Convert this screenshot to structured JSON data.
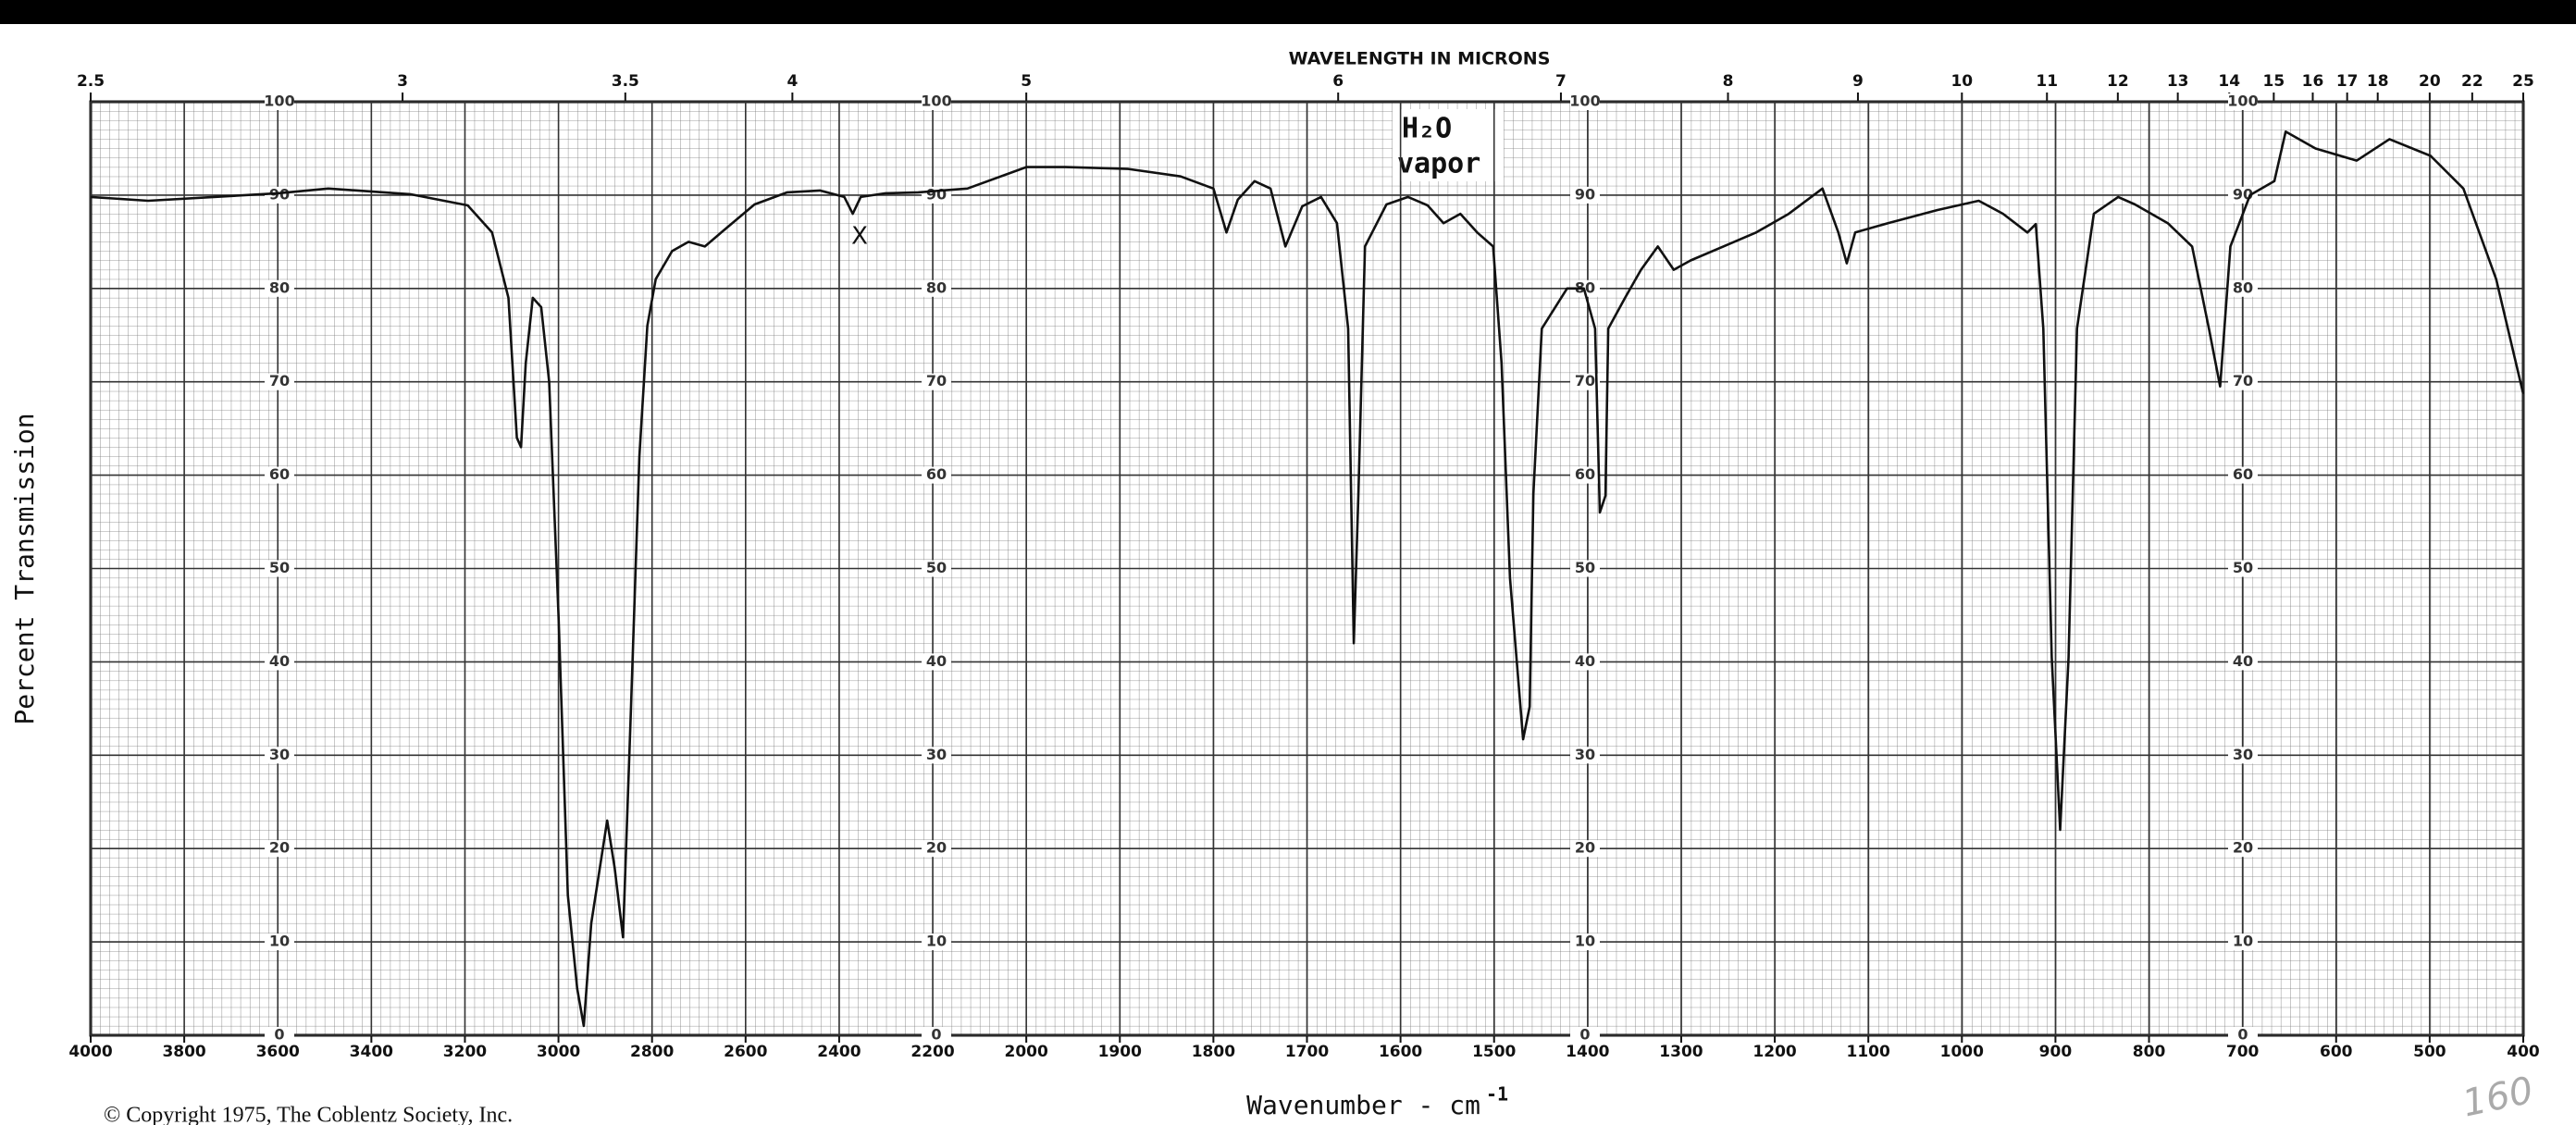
{
  "chart_data": {
    "type": "line",
    "title": "WAVELENGTH IN MICRONS",
    "x_label": "Wavenumber - cm",
    "x_label_sup": "-1",
    "y_label": "Percent Transmission",
    "copyright": "© Copyright 1975, The Coblentz Society, Inc.",
    "annotations": [
      "H₂O",
      "vapor",
      "X",
      "160"
    ],
    "x": [
      4000,
      3877,
      3737,
      3600,
      3492,
      3317,
      3194,
      3142,
      3107,
      3089,
      3080,
      3070,
      3055,
      3037,
      3020,
      3000,
      2980,
      2960,
      2946,
      2930,
      2896,
      2880,
      2862,
      2845,
      2827,
      2810,
      2792,
      2757,
      2722,
      2687,
      2652,
      2581,
      2511,
      2441,
      2389,
      2371,
      2354,
      2301,
      2231,
      2126,
      2000,
      1958,
      1891,
      1835,
      1800,
      1786,
      1774,
      1756,
      1739,
      1723,
      1705,
      1685,
      1668,
      1656,
      1650,
      1645,
      1638,
      1615,
      1592,
      1571,
      1554,
      1536,
      1518,
      1501,
      1492,
      1483,
      1469,
      1462,
      1458,
      1449,
      1422,
      1404,
      1392,
      1387,
      1381,
      1378,
      1360,
      1343,
      1325,
      1308,
      1290,
      1255,
      1220,
      1185,
      1149,
      1132,
      1123,
      1114,
      1079,
      1026,
      982,
      956,
      930,
      921,
      913,
      904,
      895,
      886,
      877,
      859,
      833,
      815,
      780,
      754,
      736,
      724,
      713,
      692,
      666,
      654,
      622,
      578,
      543,
      499,
      464,
      429,
      400
    ],
    "series": [
      {
        "name": "Percent Transmission",
        "color": "#111111",
        "values": [
          89.8,
          89.4,
          89.8,
          90.2,
          90.7,
          90.1,
          88.9,
          86,
          79,
          64,
          63,
          72,
          79,
          78,
          70,
          45,
          15,
          5,
          1,
          12,
          23,
          18,
          10.5,
          35,
          62,
          76,
          81,
          84,
          85,
          84.5,
          86,
          89,
          90.3,
          90.5,
          89.8,
          88,
          89.8,
          90.2,
          90.3,
          90.7,
          93,
          93,
          92.8,
          92,
          90.7,
          86,
          89.5,
          91.5,
          90.7,
          84.5,
          88.8,
          89.8,
          87,
          75.7,
          42,
          58,
          84.5,
          89,
          89.8,
          88.9,
          87,
          88,
          86,
          84.5,
          72,
          49,
          31.7,
          35.2,
          58,
          75.7,
          80,
          80,
          75.7,
          56,
          57.8,
          75.7,
          79,
          82,
          84.5,
          82,
          83,
          84.5,
          86,
          88,
          90.7,
          86,
          82.7,
          86,
          87,
          88.4,
          89.4,
          88,
          86,
          86.9,
          75.7,
          40.5,
          22,
          40.5,
          75.7,
          88,
          89.8,
          89,
          87,
          84.5,
          75.7,
          69.5,
          84.5,
          90,
          91.5,
          96.8,
          95,
          93.7,
          96,
          94.2,
          90.7,
          81,
          68.7
        ]
      }
    ],
    "xlim": [
      4000,
      400
    ],
    "xticks": [
      4000,
      3800,
      3600,
      3400,
      3200,
      3000,
      2800,
      2600,
      2400,
      2200,
      2000,
      1900,
      1800,
      1700,
      1600,
      1500,
      1400,
      1300,
      1200,
      1100,
      1000,
      900,
      800,
      700,
      600,
      500,
      400
    ],
    "x2ticks": [
      2.5,
      3,
      3.5,
      4,
      5,
      6,
      7,
      8,
      9,
      10,
      11,
      12,
      13,
      14,
      15,
      16,
      17,
      18,
      20,
      22,
      25
    ],
    "ylim": [
      0,
      100
    ],
    "yticks": [
      0,
      10,
      20,
      30,
      40,
      50,
      60,
      70,
      80,
      90,
      100
    ],
    "grid": true
  }
}
